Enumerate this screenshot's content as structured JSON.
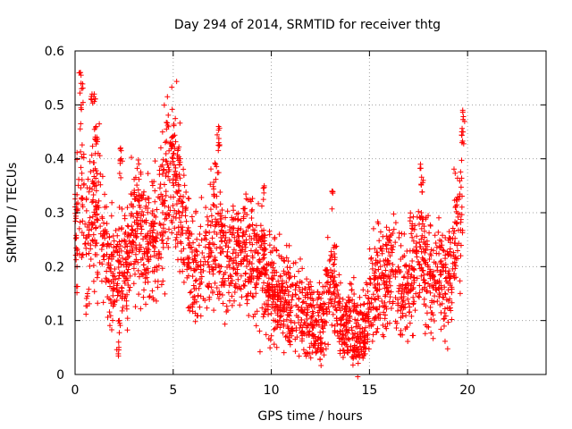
{
  "chart_data": {
    "type": "scatter",
    "title": "Day 294 of 2014, SRMTID for receiver thtg",
    "xlabel": "GPS time / hours",
    "ylabel": "SRMTID / TECUs",
    "xlim": [
      0,
      24
    ],
    "ylim": [
      0,
      0.6
    ],
    "xticks": [
      0,
      5,
      10,
      15,
      20
    ],
    "yticks": [
      0,
      0.1,
      0.2,
      0.3,
      0.4,
      0.5,
      0.6
    ],
    "xtick_labels": [
      "0",
      "5",
      "10",
      "15",
      "20"
    ],
    "ytick_labels": [
      "0",
      "0.1",
      "0.2",
      "0.3",
      "0.4",
      "0.5",
      "0.6"
    ],
    "grid": true,
    "marker": "+",
    "color": "#ff0000",
    "series": [
      {
        "name": "SRMTID",
        "x_range": [
          0,
          19.75
        ],
        "profile": [
          [
            0.0,
            0.26
          ],
          [
            0.25,
            0.33
          ],
          [
            0.5,
            0.28
          ],
          [
            0.75,
            0.27
          ],
          [
            1.0,
            0.3
          ],
          [
            1.25,
            0.3
          ],
          [
            1.5,
            0.25
          ],
          [
            1.75,
            0.21
          ],
          [
            2.0,
            0.16
          ],
          [
            2.25,
            0.2
          ],
          [
            2.5,
            0.19
          ],
          [
            2.75,
            0.22
          ],
          [
            3.0,
            0.27
          ],
          [
            3.25,
            0.28
          ],
          [
            3.5,
            0.25
          ],
          [
            3.75,
            0.24
          ],
          [
            4.0,
            0.25
          ],
          [
            4.25,
            0.28
          ],
          [
            4.5,
            0.33
          ],
          [
            4.75,
            0.37
          ],
          [
            5.0,
            0.39
          ],
          [
            5.25,
            0.34
          ],
          [
            5.5,
            0.28
          ],
          [
            5.75,
            0.23
          ],
          [
            6.0,
            0.2
          ],
          [
            6.25,
            0.18
          ],
          [
            6.5,
            0.22
          ],
          [
            6.75,
            0.24
          ],
          [
            7.0,
            0.25
          ],
          [
            7.25,
            0.26
          ],
          [
            7.5,
            0.22
          ],
          [
            7.75,
            0.21
          ],
          [
            8.0,
            0.21
          ],
          [
            8.25,
            0.23
          ],
          [
            8.5,
            0.24
          ],
          [
            8.75,
            0.22
          ],
          [
            9.0,
            0.22
          ],
          [
            9.25,
            0.2
          ],
          [
            9.5,
            0.21
          ],
          [
            9.75,
            0.18
          ],
          [
            10.0,
            0.15
          ],
          [
            10.25,
            0.15
          ],
          [
            10.5,
            0.14
          ],
          [
            10.75,
            0.13
          ],
          [
            11.0,
            0.14
          ],
          [
            11.25,
            0.13
          ],
          [
            11.5,
            0.12
          ],
          [
            11.75,
            0.11
          ],
          [
            12.0,
            0.1
          ],
          [
            12.25,
            0.09
          ],
          [
            12.5,
            0.1
          ],
          [
            12.75,
            0.13
          ],
          [
            13.0,
            0.15
          ],
          [
            13.25,
            0.15
          ],
          [
            13.5,
            0.1
          ],
          [
            13.75,
            0.09
          ],
          [
            14.0,
            0.1
          ],
          [
            14.25,
            0.08
          ],
          [
            14.5,
            0.07
          ],
          [
            14.75,
            0.08
          ],
          [
            15.0,
            0.12
          ],
          [
            15.25,
            0.17
          ],
          [
            15.5,
            0.17
          ],
          [
            15.75,
            0.16
          ],
          [
            16.0,
            0.19
          ],
          [
            16.25,
            0.21
          ],
          [
            16.5,
            0.18
          ],
          [
            16.75,
            0.16
          ],
          [
            17.0,
            0.17
          ],
          [
            17.25,
            0.19
          ],
          [
            17.5,
            0.2
          ],
          [
            17.75,
            0.21
          ],
          [
            18.0,
            0.18
          ],
          [
            18.25,
            0.17
          ],
          [
            18.5,
            0.19
          ],
          [
            18.75,
            0.19
          ],
          [
            19.0,
            0.16
          ],
          [
            19.25,
            0.22
          ],
          [
            19.5,
            0.29
          ],
          [
            19.75,
            0.36
          ]
        ],
        "spikes": [
          [
            0.25,
            0.56
          ],
          [
            0.3,
            0.5
          ],
          [
            0.35,
            0.54
          ],
          [
            0.85,
            0.52
          ],
          [
            1.05,
            0.46
          ],
          [
            1.1,
            0.44
          ],
          [
            2.3,
            0.42
          ],
          [
            2.35,
            0.4
          ],
          [
            2.2,
            0.06
          ],
          [
            2.25,
            0.1
          ],
          [
            4.9,
            0.43
          ],
          [
            5.0,
            0.41
          ],
          [
            5.3,
            0.4
          ],
          [
            7.3,
            0.46
          ],
          [
            7.35,
            0.43
          ],
          [
            7.2,
            0.39
          ],
          [
            9.6,
            0.35
          ],
          [
            13.1,
            0.34
          ],
          [
            13.2,
            0.24
          ],
          [
            14.4,
            0.04
          ],
          [
            14.2,
            0.05
          ],
          [
            17.6,
            0.39
          ],
          [
            17.7,
            0.36
          ],
          [
            19.8,
            0.49
          ],
          [
            19.75,
            0.45
          ],
          [
            0.6,
            0.15
          ],
          [
            5.2,
            0.37
          ],
          [
            1.0,
            0.52
          ],
          [
            17.65,
            0.3
          ],
          [
            12.5,
            0.05
          ]
        ]
      }
    ]
  }
}
